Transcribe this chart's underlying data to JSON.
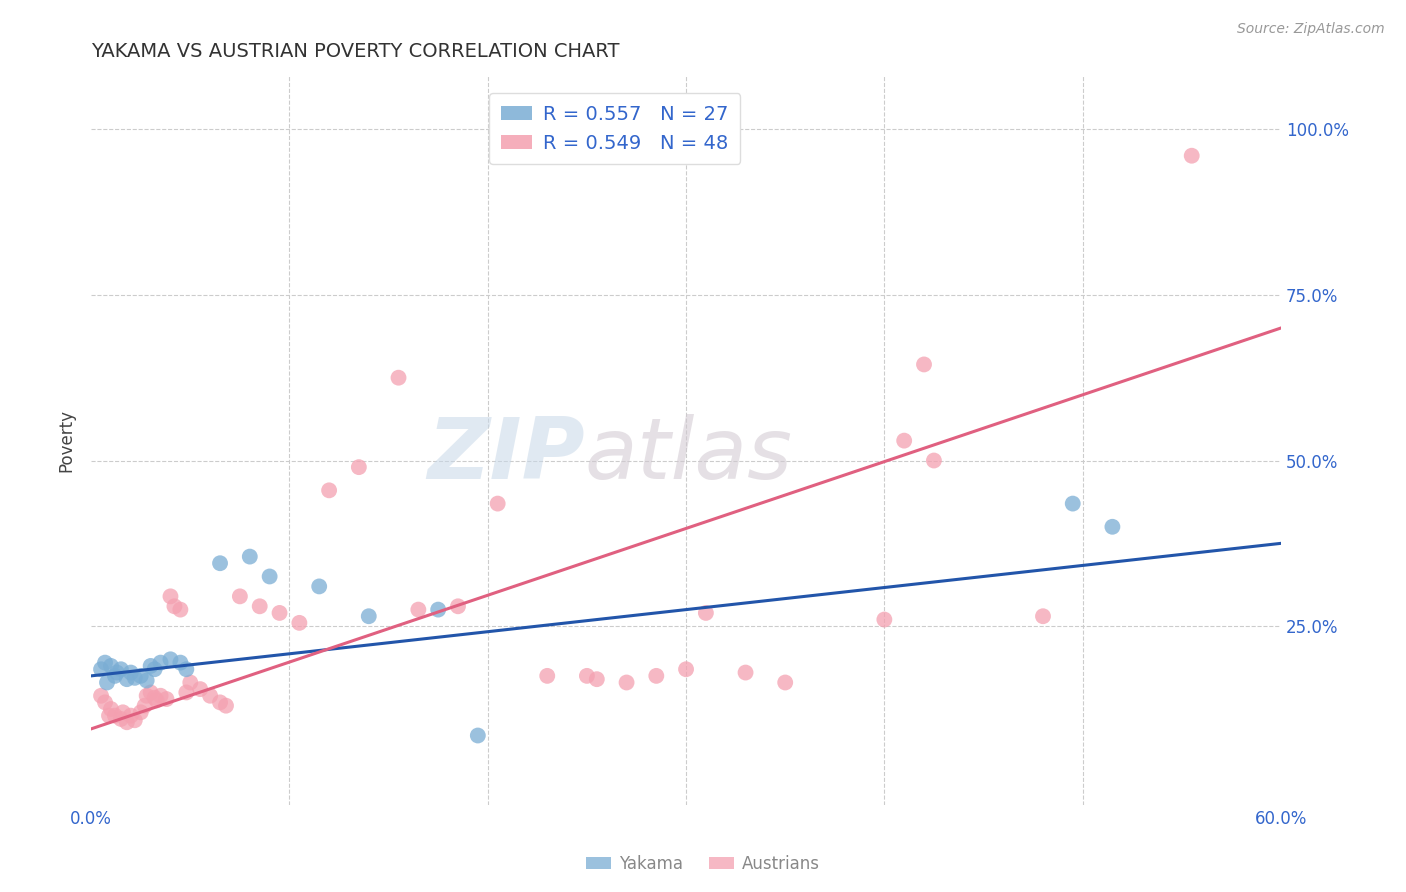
{
  "title": "YAKAMA VS AUSTRIAN POVERTY CORRELATION CHART",
  "source": "Source: ZipAtlas.com",
  "ylabel": "Poverty",
  "xlim": [
    0.0,
    0.6
  ],
  "ylim": [
    -0.02,
    1.08
  ],
  "background_color": "#ffffff",
  "grid_color": "#cccccc",
  "watermark_part1": "ZIP",
  "watermark_part2": "atlas",
  "yakama_color": "#7aadd4",
  "austrians_color": "#f4a0b0",
  "line_yakama_color": "#2255aa",
  "line_austrians_color": "#e06080",
  "yakama_points": [
    [
      0.005,
      0.185
    ],
    [
      0.007,
      0.195
    ],
    [
      0.008,
      0.165
    ],
    [
      0.01,
      0.19
    ],
    [
      0.012,
      0.175
    ],
    [
      0.013,
      0.18
    ],
    [
      0.015,
      0.185
    ],
    [
      0.018,
      0.17
    ],
    [
      0.02,
      0.18
    ],
    [
      0.022,
      0.172
    ],
    [
      0.025,
      0.175
    ],
    [
      0.028,
      0.168
    ],
    [
      0.03,
      0.19
    ],
    [
      0.032,
      0.185
    ],
    [
      0.035,
      0.195
    ],
    [
      0.04,
      0.2
    ],
    [
      0.045,
      0.195
    ],
    [
      0.048,
      0.185
    ],
    [
      0.065,
      0.345
    ],
    [
      0.08,
      0.355
    ],
    [
      0.09,
      0.325
    ],
    [
      0.115,
      0.31
    ],
    [
      0.14,
      0.265
    ],
    [
      0.175,
      0.275
    ],
    [
      0.195,
      0.085
    ],
    [
      0.495,
      0.435
    ],
    [
      0.515,
      0.4
    ]
  ],
  "austrians_points": [
    [
      0.005,
      0.145
    ],
    [
      0.007,
      0.135
    ],
    [
      0.009,
      0.115
    ],
    [
      0.01,
      0.125
    ],
    [
      0.012,
      0.115
    ],
    [
      0.015,
      0.11
    ],
    [
      0.016,
      0.12
    ],
    [
      0.018,
      0.105
    ],
    [
      0.02,
      0.115
    ],
    [
      0.022,
      0.108
    ],
    [
      0.025,
      0.12
    ],
    [
      0.027,
      0.13
    ],
    [
      0.028,
      0.145
    ],
    [
      0.03,
      0.15
    ],
    [
      0.032,
      0.142
    ],
    [
      0.033,
      0.138
    ],
    [
      0.035,
      0.145
    ],
    [
      0.038,
      0.14
    ],
    [
      0.04,
      0.295
    ],
    [
      0.042,
      0.28
    ],
    [
      0.045,
      0.275
    ],
    [
      0.048,
      0.15
    ],
    [
      0.05,
      0.165
    ],
    [
      0.055,
      0.155
    ],
    [
      0.06,
      0.145
    ],
    [
      0.065,
      0.135
    ],
    [
      0.068,
      0.13
    ],
    [
      0.075,
      0.295
    ],
    [
      0.085,
      0.28
    ],
    [
      0.095,
      0.27
    ],
    [
      0.105,
      0.255
    ],
    [
      0.12,
      0.455
    ],
    [
      0.135,
      0.49
    ],
    [
      0.155,
      0.625
    ],
    [
      0.165,
      0.275
    ],
    [
      0.185,
      0.28
    ],
    [
      0.205,
      0.435
    ],
    [
      0.23,
      0.175
    ],
    [
      0.25,
      0.175
    ],
    [
      0.255,
      0.17
    ],
    [
      0.27,
      0.165
    ],
    [
      0.285,
      0.175
    ],
    [
      0.3,
      0.185
    ],
    [
      0.31,
      0.27
    ],
    [
      0.33,
      0.18
    ],
    [
      0.35,
      0.165
    ],
    [
      0.4,
      0.26
    ],
    [
      0.41,
      0.53
    ],
    [
      0.425,
      0.5
    ],
    [
      0.48,
      0.265
    ],
    [
      0.555,
      0.96
    ],
    [
      0.42,
      0.645
    ]
  ],
  "yakama_line": [
    [
      0.0,
      0.175
    ],
    [
      0.6,
      0.375
    ]
  ],
  "austrians_line": [
    [
      0.0,
      0.095
    ],
    [
      0.6,
      0.7
    ]
  ]
}
